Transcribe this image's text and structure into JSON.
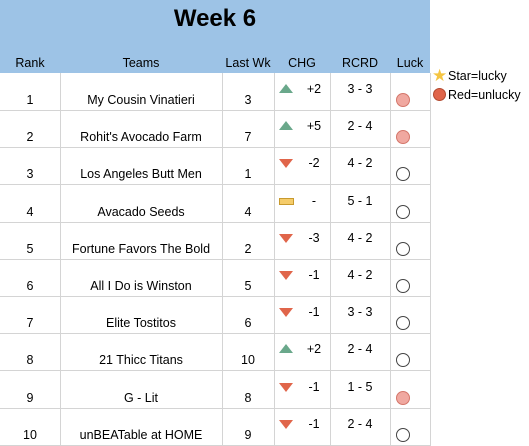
{
  "title": "Week 6",
  "headers": {
    "rank": "Rank",
    "teams": "Teams",
    "last_wk": "Last Wk",
    "chg": "CHG",
    "rcrd": "RCRD",
    "luck": "Luck"
  },
  "rows": [
    {
      "rank": "1",
      "team": "My Cousin Vinatieri",
      "last_wk": "3",
      "trend": "up",
      "chg": "+2",
      "rcrd": "3 - 3",
      "luck": "unlucky"
    },
    {
      "rank": "2",
      "team": "Rohit's Avocado Farm",
      "last_wk": "7",
      "trend": "up",
      "chg": "+5",
      "rcrd": "2 - 4",
      "luck": "unlucky"
    },
    {
      "rank": "3",
      "team": "Los Angeles Butt Men",
      "last_wk": "1",
      "trend": "down",
      "chg": "-2",
      "rcrd": "4 - 2",
      "luck": "neutral"
    },
    {
      "rank": "4",
      "team": "Avacado Seeds",
      "last_wk": "4",
      "trend": "flat",
      "chg": "-",
      "rcrd": "5 - 1",
      "luck": "neutral"
    },
    {
      "rank": "5",
      "team": "Fortune Favors The Bold",
      "last_wk": "2",
      "trend": "down",
      "chg": "-3",
      "rcrd": "4 - 2",
      "luck": "neutral"
    },
    {
      "rank": "6",
      "team": "All I Do is Winston",
      "last_wk": "5",
      "trend": "down",
      "chg": "-1",
      "rcrd": "4 - 2",
      "luck": "neutral"
    },
    {
      "rank": "7",
      "team": "Elite Tostitos",
      "last_wk": "6",
      "trend": "down",
      "chg": "-1",
      "rcrd": "3 - 3",
      "luck": "neutral"
    },
    {
      "rank": "8",
      "team": "21 Thicc Titans",
      "last_wk": "10",
      "trend": "up",
      "chg": "+2",
      "rcrd": "2 - 4",
      "luck": "neutral"
    },
    {
      "rank": "9",
      "team": "G - Lit",
      "last_wk": "8",
      "trend": "down",
      "chg": "-1",
      "rcrd": "1 - 5",
      "luck": "unlucky"
    },
    {
      "rank": "10",
      "team": "unBEATable at HOME",
      "last_wk": "9",
      "trend": "down",
      "chg": "-1",
      "rcrd": "2 - 4",
      "luck": "neutral"
    }
  ],
  "legend": {
    "star_label": "Star=lucky",
    "red_label": "Red=unlucky"
  },
  "colors": {
    "header_band": "#9dc3e6",
    "trend_up": "#6aa88b",
    "trend_down": "#e0654a",
    "trend_flat": "#f5cc6a",
    "unlucky_fill": "#f0a8a0",
    "unlucky_border": "#d4766a",
    "star": "#f5c542"
  }
}
